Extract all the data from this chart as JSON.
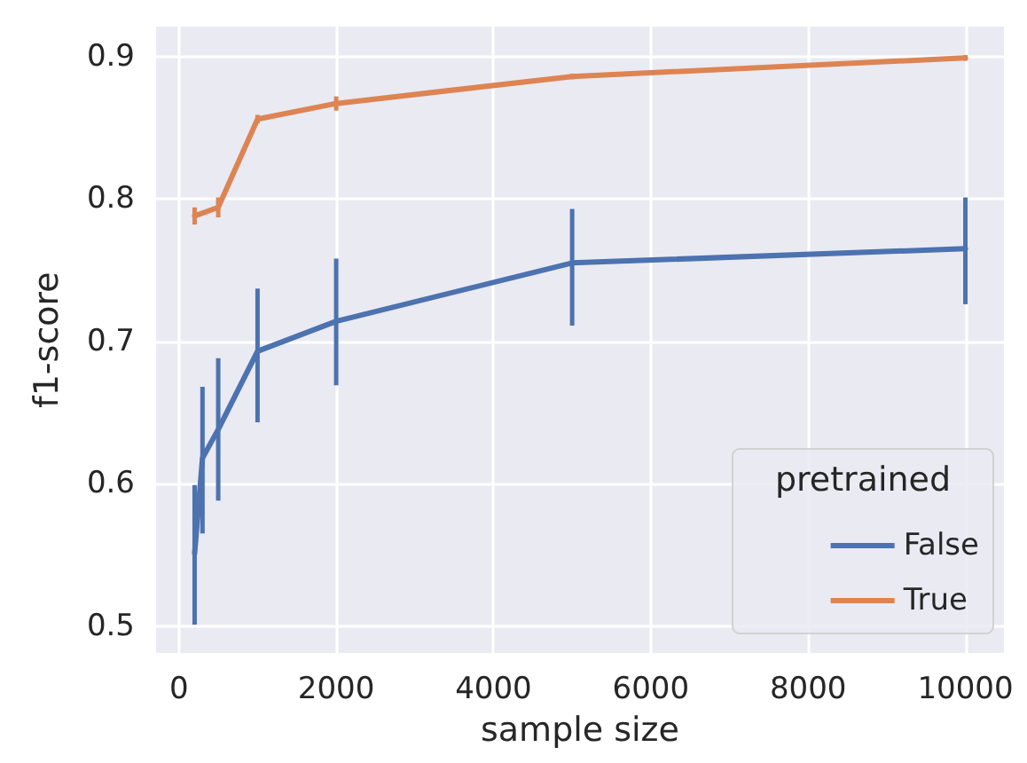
{
  "chart_data": {
    "type": "line",
    "xlabel": "sample size",
    "ylabel": "f1-score",
    "legend_title": "pretrained",
    "xlim": [
      -290,
      10490
    ],
    "xticks": [
      0,
      2000,
      4000,
      6000,
      8000,
      10000
    ],
    "ylim": [
      0.481,
      0.921
    ],
    "yticks": [
      0.5,
      0.6,
      0.7,
      0.8,
      0.9
    ],
    "grid": true,
    "legend": "bottom right",
    "marker": "none",
    "line_style": "solid",
    "series": [
      {
        "name": "False",
        "color": "#4c72b0",
        "x": [
          200,
          300,
          500,
          1000,
          2000,
          5000,
          10000
        ],
        "values": [
          0.551,
          0.618,
          0.638,
          0.693,
          0.714,
          0.755,
          0.765
        ],
        "errors": [
          [
            0.501,
            0.599
          ],
          [
            0.565,
            0.668
          ],
          [
            0.588,
            0.688
          ],
          [
            0.643,
            0.737
          ],
          [
            0.669,
            0.758
          ],
          [
            0.711,
            0.793
          ],
          [
            0.726,
            0.801
          ]
        ]
      },
      {
        "name": "True",
        "color": "#dd8452",
        "x": [
          200,
          500,
          1000,
          2000,
          5000,
          10000
        ],
        "values": [
          0.788,
          0.794,
          0.856,
          0.867,
          0.886,
          0.899
        ],
        "errors": [
          [
            0.782,
            0.794
          ],
          [
            0.787,
            0.801
          ],
          [
            0.853,
            0.859
          ],
          [
            0.862,
            0.872
          ],
          [
            0.884,
            0.888
          ],
          [
            0.897,
            0.901
          ]
        ]
      }
    ]
  }
}
